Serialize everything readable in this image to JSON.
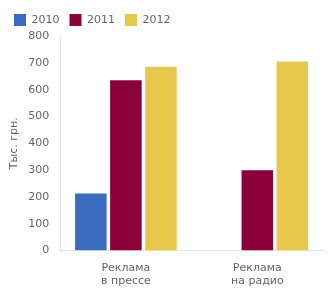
{
  "chart_data": {
    "type": "bar",
    "categories": [
      "Реклама\nв прессе",
      "Реклама\nна радио"
    ],
    "series": [
      {
        "name": "2010",
        "color": "#3a6bbf",
        "values": [
          213,
          0
        ]
      },
      {
        "name": "2011",
        "color": "#8b0038",
        "values": [
          635,
          300
        ]
      },
      {
        "name": "2012",
        "color": "#e8c84a",
        "values": [
          685,
          705
        ]
      }
    ],
    "ylabel": "Тыс. грн.",
    "ylim": [
      0,
      800
    ],
    "yticks": [
      0,
      100,
      200,
      300,
      400,
      500,
      600,
      700,
      800
    ],
    "grid": false,
    "legend": "upper left"
  }
}
